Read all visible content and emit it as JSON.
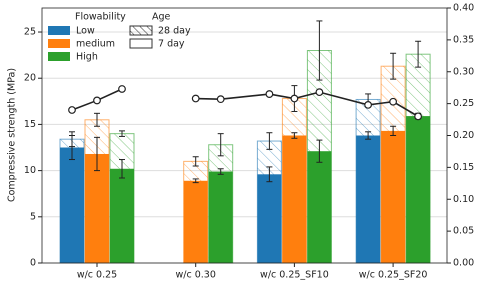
{
  "chart_data": {
    "type": "bar",
    "y_label": "Compressive strength (MPa)",
    "categories": [
      "w/c 0.25",
      "w/c 0.30",
      "w/c 0.25_SF10",
      "w/c 0.25_SF20"
    ],
    "legend_title": "Flowability",
    "age_legend": {
      "title": "Age",
      "entries": [
        "28 day",
        "7 day"
      ]
    },
    "series": [
      {
        "name": "Low",
        "color": "#1f77b4",
        "values": [
          12.5,
          null,
          9.6,
          13.8
        ],
        "errors": [
          1.3,
          null,
          0.8,
          0.4
        ],
        "values_28": [
          13.4,
          null,
          13.2,
          17.7
        ],
        "errors_28": [
          0.8,
          null,
          0.9,
          0.6
        ],
        "y2_values": [
          0.24,
          null,
          0.265,
          0.248
        ]
      },
      {
        "name": "medium",
        "color": "#ff7f0e",
        "values": [
          11.8,
          8.9,
          13.8,
          14.3
        ],
        "errors": [
          1.8,
          0.2,
          0.3,
          0.5
        ],
        "values_28": [
          15.5,
          11.0,
          17.8,
          21.3
        ],
        "errors_28": [
          0.7,
          0.5,
          1.4,
          1.4
        ],
        "y2_values": [
          0.255,
          0.258,
          0.258,
          0.253
        ]
      },
      {
        "name": "High",
        "color": "#2ca02c",
        "values": [
          10.2,
          9.9,
          12.1,
          15.9
        ],
        "errors": [
          1.0,
          0.3,
          1.2,
          0.3
        ],
        "values_28": [
          14.0,
          12.8,
          23.0,
          22.6
        ],
        "errors_28": [
          0.3,
          1.2,
          3.2,
          1.4
        ],
        "y2_values": [
          0.273,
          0.257,
          0.268,
          0.23
        ]
      }
    ],
    "line_color": "#222222",
    "ylim": [
      0,
      27.6
    ],
    "yticks": [
      0,
      5,
      10,
      15,
      20,
      25
    ],
    "y2lim": [
      0,
      0.4
    ],
    "y2ticks": [
      {
        "value": 0,
        "label": "0.00"
      },
      {
        "value": 0.05,
        "label": "0.05"
      },
      {
        "value": 0.1,
        "label": "0.10"
      },
      {
        "value": 0.15,
        "label": "0.15"
      },
      {
        "value": 0.2,
        "label": "0.20"
      },
      {
        "value": 0.25,
        "label": "0.25"
      },
      {
        "value": 0.3,
        "label": "0.30"
      },
      {
        "value": 0.35,
        "label": "0.35"
      },
      {
        "value": 0.4,
        "label": "0.40"
      }
    ],
    "grid": true
  }
}
